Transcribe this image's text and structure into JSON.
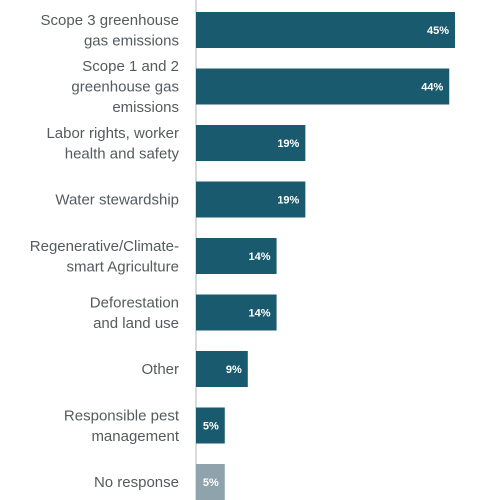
{
  "chart_data": {
    "type": "bar",
    "orientation": "horizontal",
    "categories": [
      [
        "Scope 3 greenhouse",
        "gas emissions"
      ],
      [
        "Scope 1 and 2",
        "greenhouse gas",
        "emissions"
      ],
      [
        "Labor rights, worker",
        "health and safety"
      ],
      [
        "Water stewardship"
      ],
      [
        "Regenerative/Climate-",
        "smart Agriculture"
      ],
      [
        "Deforestation",
        "and land use"
      ],
      [
        "Other"
      ],
      [
        "Responsible pest",
        "management"
      ],
      [
        "No response"
      ]
    ],
    "values": [
      45,
      44,
      19,
      19,
      14,
      14,
      9,
      5,
      5
    ],
    "value_labels": [
      "45%",
      "44%",
      "19%",
      "19%",
      "14%",
      "14%",
      "9%",
      "5%",
      "5%"
    ],
    "title": "",
    "xlabel": "",
    "ylabel": "",
    "xlim": [
      0,
      50
    ],
    "grid": false,
    "colors": {
      "bar": "#1a5a6e",
      "bar_muted": "#8fa3ad",
      "axis": "#b0b7bb",
      "label": "#555a5e",
      "value_text": "#ffffff"
    },
    "muted_categories": [
      8
    ]
  }
}
